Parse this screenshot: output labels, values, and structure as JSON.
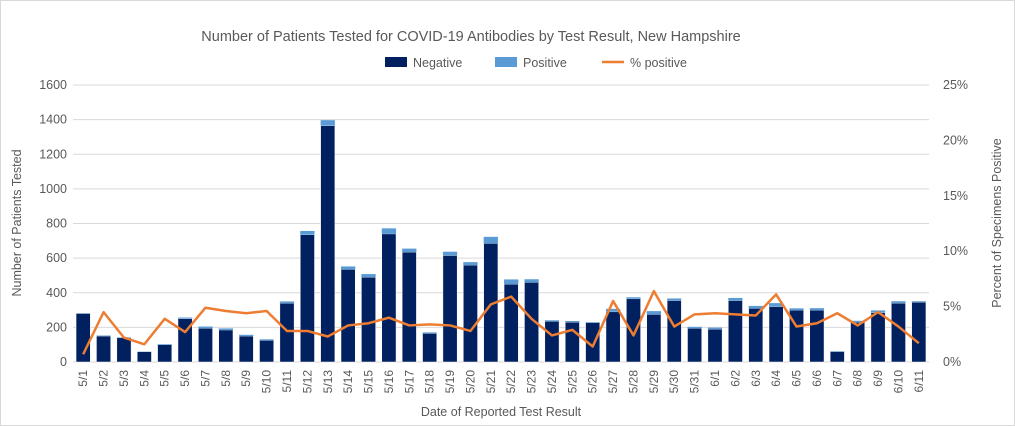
{
  "chart_data": {
    "type": "bar",
    "title": "Number of Patients Tested for COVID-19 Antibodies by Test Result, New Hampshire",
    "xlabel": "Date of Reported Test Result",
    "ylabel": "Number of Patients Tested",
    "y2label": "Percent of Specimens Positive",
    "ylim": [
      0,
      1600
    ],
    "y2lim": [
      0,
      25
    ],
    "yticks": [
      "0",
      "200",
      "400",
      "600",
      "800",
      "1000",
      "1200",
      "1400",
      "1600"
    ],
    "y2ticks": [
      "0%",
      "5%",
      "10%",
      "15%",
      "20%",
      "25%"
    ],
    "grid": true,
    "legend": "top",
    "categories": [
      "5/1",
      "5/2",
      "5/3",
      "5/4",
      "5/5",
      "5/6",
      "5/7",
      "5/8",
      "5/9",
      "5/10",
      "5/11",
      "5/12",
      "5/13",
      "5/14",
      "5/15",
      "5/16",
      "5/17",
      "5/18",
      "5/19",
      "5/20",
      "5/21",
      "5/22",
      "5/23",
      "5/24",
      "5/25",
      "5/26",
      "5/27",
      "5/28",
      "5/29",
      "5/30",
      "5/31",
      "6/1",
      "6/2",
      "6/3",
      "6/4",
      "6/5",
      "6/6",
      "6/7",
      "6/8",
      "6/9",
      "6/10",
      "6/11"
    ],
    "series": [
      {
        "name": "Negative",
        "kind": "bar",
        "color": "#002060",
        "values": [
          280,
          150,
          140,
          60,
          100,
          250,
          195,
          185,
          150,
          125,
          340,
          735,
          1365,
          535,
          490,
          740,
          635,
          165,
          615,
          560,
          685,
          450,
          460,
          235,
          230,
          227,
          290,
          365,
          275,
          355,
          195,
          190,
          355,
          310,
          320,
          300,
          300,
          60,
          230,
          285,
          340,
          345
        ]
      },
      {
        "name": "Positive",
        "kind": "bar",
        "color": "#5B9BD5",
        "values": [
          2,
          3,
          3,
          1,
          4,
          7,
          10,
          9,
          7,
          6,
          10,
          22,
          32,
          17,
          18,
          32,
          20,
          6,
          22,
          17,
          38,
          27,
          18,
          6,
          7,
          4,
          17,
          9,
          19,
          12,
          8,
          9,
          15,
          14,
          20,
          10,
          11,
          3,
          8,
          13,
          11,
          6
        ]
      },
      {
        "name": "% positive",
        "kind": "line",
        "axis": "right",
        "color": "#ED7D31",
        "values": [
          0.7,
          4.5,
          2.2,
          1.6,
          3.9,
          2.7,
          4.9,
          4.6,
          4.4,
          4.6,
          2.8,
          2.8,
          2.3,
          3.3,
          3.5,
          4.0,
          3.3,
          3.4,
          3.3,
          2.8,
          5.2,
          5.9,
          3.9,
          2.4,
          2.9,
          1.4,
          5.5,
          2.4,
          6.4,
          3.2,
          4.3,
          4.4,
          4.3,
          4.2,
          6.1,
          3.2,
          3.5,
          4.4,
          3.3,
          4.5,
          3.2,
          1.7
        ]
      }
    ]
  }
}
